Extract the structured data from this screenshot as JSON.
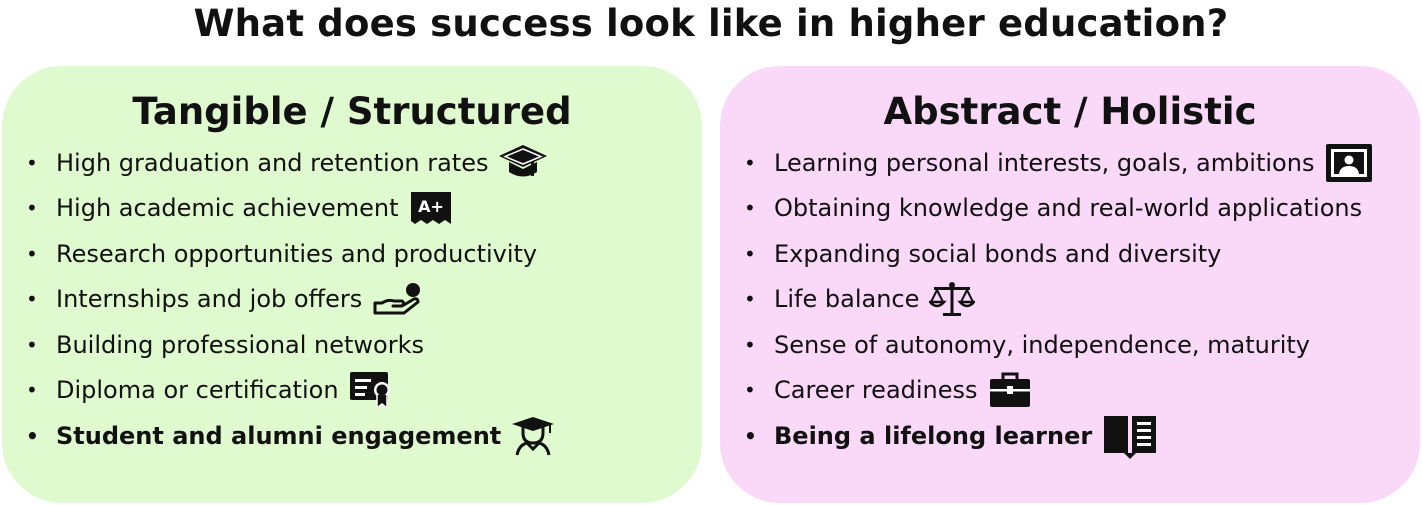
{
  "title": "What does success look like in higher education?",
  "bullet_glyph": "•",
  "panels": {
    "left": {
      "heading": "Tangible / Structured",
      "background": "#e0fad0",
      "items": [
        {
          "text": "High graduation and retention rates",
          "icon": "graduation-cap-icon"
        },
        {
          "text": "High academic achievement",
          "icon": "a-plus-grade-icon"
        },
        {
          "text": "Research opportunities and productivity"
        },
        {
          "text": "Internships and job offers",
          "icon": "hand-coin-icon"
        },
        {
          "text": "Building professional networks"
        },
        {
          "text": "Diploma or certification",
          "icon": "certificate-icon"
        },
        {
          "text": "Student and alumni engagement",
          "icon": "graduate-person-icon",
          "bold": true
        }
      ]
    },
    "right": {
      "heading": "Abstract / Holistic",
      "background": "#f9d8f8",
      "items": [
        {
          "text": "Learning personal interests, goals, ambitions",
          "icon": "portrait-frame-icon"
        },
        {
          "text": "Obtaining knowledge and real-world applications"
        },
        {
          "text": "Expanding social bonds and diversity"
        },
        {
          "text": "Life balance",
          "icon": "balance-scale-icon"
        },
        {
          "text": "Sense of autonomy, independence, maturity"
        },
        {
          "text": "Career readiness",
          "icon": "briefcase-icon"
        },
        {
          "text": "Being a lifelong learner",
          "icon": "open-book-icon",
          "bold": true
        }
      ]
    }
  }
}
